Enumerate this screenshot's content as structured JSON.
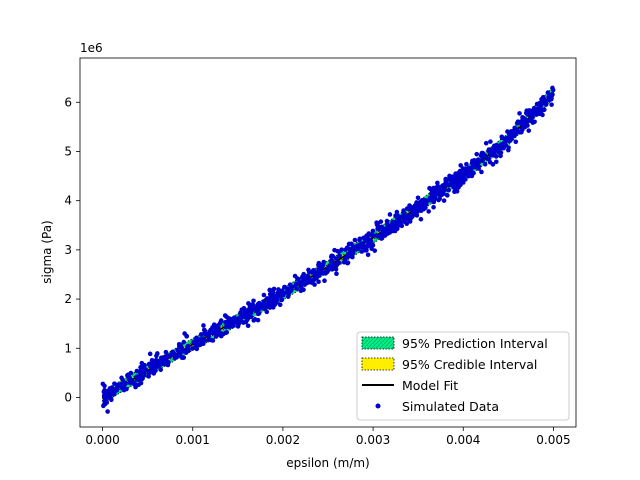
{
  "chart_data": {
    "type": "scatter",
    "title": "",
    "xlabel": "epsilon (m/m)",
    "ylabel": "sigma (Pa)",
    "y_offset_label": "1e6",
    "xlim": [
      -0.00025,
      0.00525
    ],
    "ylim": [
      -0.6,
      6.9
    ],
    "y_scale": 1000000,
    "x_ticks": [
      0.0,
      0.001,
      0.002,
      0.003,
      0.004,
      0.005
    ],
    "x_tick_labels": [
      "0.000",
      "0.001",
      "0.002",
      "0.003",
      "0.004",
      "0.005"
    ],
    "y_ticks": [
      0,
      1,
      2,
      3,
      4,
      5,
      6
    ],
    "y_tick_labels": [
      "0",
      "1",
      "2",
      "3",
      "4",
      "5",
      "6"
    ],
    "grid": false,
    "legend_position": "lower-right",
    "legend": [
      {
        "label": "95% Prediction Interval",
        "kind": "patch",
        "color": "#00ee88"
      },
      {
        "label": "95% Credible Interval",
        "kind": "patch",
        "color": "#ffee00"
      },
      {
        "label": "Model Fit",
        "kind": "line",
        "color": "#000000"
      },
      {
        "label": "Simulated Data",
        "kind": "marker",
        "color": "#0000cc"
      }
    ],
    "model_fit": {
      "x": [
        0.0,
        0.0005,
        0.001,
        0.0015,
        0.002,
        0.0025,
        0.003,
        0.0035,
        0.004,
        0.0045,
        0.005
      ],
      "y": [
        0.0,
        0.55,
        1.08,
        1.58,
        2.1,
        2.66,
        3.25,
        3.87,
        4.52,
        5.25,
        6.2
      ]
    },
    "prediction_interval_halfwidth": 0.12,
    "credible_interval_halfwidth": 0.04,
    "simulated_data": {
      "x_range": [
        0.0,
        0.005
      ],
      "noise_sigma": 0.1,
      "count": 1000
    }
  }
}
